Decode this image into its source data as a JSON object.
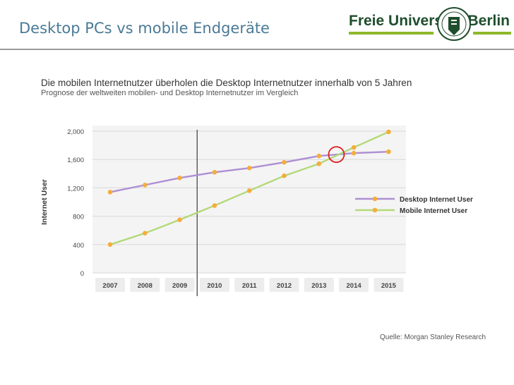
{
  "slide": {
    "title": "Desktop PCs vs mobile Endgeräte",
    "source": "Quelle: Morgan Stanley Research"
  },
  "logo": {
    "left_text": "Freie Universität",
    "right_text": "Berlin"
  },
  "colors": {
    "title": "#4a7a96",
    "desktop_line": "#ad8fd4",
    "mobile_line": "#b4d97a",
    "marker": "#f5ad3b",
    "highlight_circle": "#e02020",
    "logo_green": "#1f4e2c",
    "logo_accent": "#8db82a"
  },
  "chart_data": {
    "type": "line",
    "title": "Die mobilen Internetnutzer überholen die Desktop Internetnutzer innerhalb von 5 Jahren",
    "subtitle": "Prognose der weltweiten mobilen- und Desktop Internetnutzer im Vergleich",
    "xlabel": "",
    "ylabel": "Internet User",
    "categories": [
      "2007",
      "2008",
      "2009",
      "2010",
      "2011",
      "2012",
      "2013",
      "2014",
      "2015"
    ],
    "series": [
      {
        "name": "Desktop Internet User",
        "values": [
          1140,
          1240,
          1340,
          1420,
          1480,
          1560,
          1650,
          1690,
          1710
        ]
      },
      {
        "name": "Mobile Internet User",
        "values": [
          400,
          560,
          750,
          950,
          1160,
          1370,
          1540,
          1770,
          1990
        ]
      }
    ],
    "ylim": [
      0,
      2000
    ],
    "yticks": [
      0,
      400,
      800,
      1200,
      1600,
      2000
    ],
    "ytick_labels": [
      "0",
      "400",
      "800",
      "1,200",
      "1,600",
      "2,000"
    ],
    "grid": true,
    "legend_position": "right",
    "divider_category": "2009.5",
    "crossover_category": "2013.5",
    "crossover_value": 1670
  }
}
